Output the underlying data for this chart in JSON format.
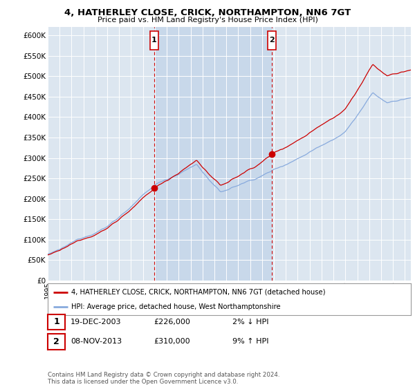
{
  "title": "4, HATHERLEY CLOSE, CRICK, NORTHAMPTON, NN6 7GT",
  "subtitle": "Price paid vs. HM Land Registry's House Price Index (HPI)",
  "legend_line1": "4, HATHERLEY CLOSE, CRICK, NORTHAMPTON, NN6 7GT (detached house)",
  "legend_line2": "HPI: Average price, detached house, West Northamptonshire",
  "footnote": "Contains HM Land Registry data © Crown copyright and database right 2024.\nThis data is licensed under the Open Government Licence v3.0.",
  "sale1_label": "1",
  "sale1_date": "19-DEC-2003",
  "sale1_price": "£226,000",
  "sale1_hpi": "2% ↓ HPI",
  "sale2_label": "2",
  "sale2_date": "08-NOV-2013",
  "sale2_price": "£310,000",
  "sale2_hpi": "9% ↑ HPI",
  "sale1_year": 2003.95,
  "sale1_value": 226000,
  "sale2_year": 2013.84,
  "sale2_value": 310000,
  "property_color": "#cc0000",
  "hpi_color": "#88aadd",
  "dashed_line_color": "#cc0000",
  "plot_bg_color": "#dce6f0",
  "plot_bg_between": "#c8d8ea",
  "grid_color": "#ffffff",
  "ylim_min": 0,
  "ylim_max": 620000,
  "xmin": 1995,
  "xmax": 2025.5
}
